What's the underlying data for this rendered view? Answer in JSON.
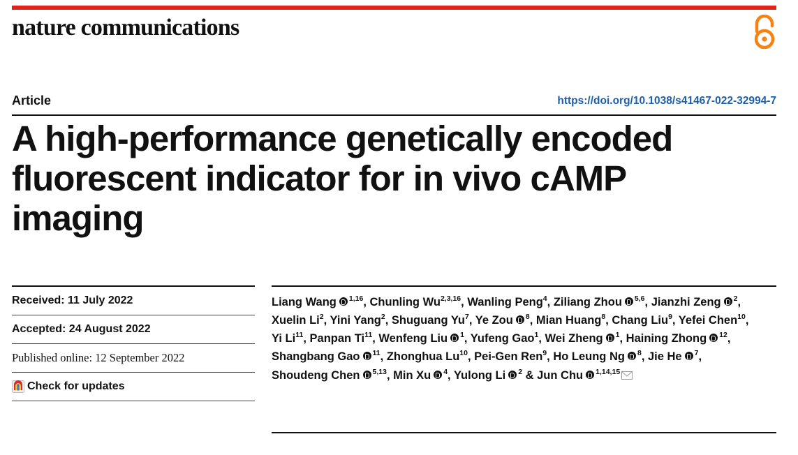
{
  "journal": {
    "name": "nature communications"
  },
  "header": {
    "section": "Article",
    "doi": "https://doi.org/10.1038/s41467-022-32994-7"
  },
  "title": {
    "line1": "A high-performance genetically encoded",
    "line2": "fluorescent indicator for in vivo cAMP",
    "line3": "imaging"
  },
  "meta": {
    "received": "Received: 11 July 2022",
    "accepted": "Accepted: 24 August 2022",
    "published": "Published online: 12 September 2022",
    "check_updates": "Check for updates"
  },
  "authors": [
    {
      "name": "Liang Wang",
      "orcid": true,
      "aff": "1,16",
      "sep": ","
    },
    {
      "name": "Chunling Wu",
      "orcid": false,
      "aff": "2,3,16",
      "sep": ","
    },
    {
      "name": "Wanling Peng",
      "orcid": false,
      "aff": "4",
      "sep": ","
    },
    {
      "name": "Ziliang Zhou",
      "orcid": true,
      "aff": "5,6",
      "sep": ","
    },
    {
      "name": "Jianzhi Zeng",
      "orcid": true,
      "aff": "2",
      "sep": ","
    },
    {
      "name": "Xuelin Li",
      "orcid": false,
      "aff": "2",
      "sep": ","
    },
    {
      "name": "Yini Yang",
      "orcid": false,
      "aff": "2",
      "sep": ","
    },
    {
      "name": "Shuguang Yu",
      "orcid": false,
      "aff": "7",
      "sep": ","
    },
    {
      "name": "Ye Zou",
      "orcid": true,
      "aff": "8",
      "sep": ","
    },
    {
      "name": "Mian Huang",
      "orcid": false,
      "aff": "8",
      "sep": ","
    },
    {
      "name": "Chang Liu",
      "orcid": false,
      "aff": "9",
      "sep": ","
    },
    {
      "name": "Yefei Chen",
      "orcid": false,
      "aff": "10",
      "sep": ","
    },
    {
      "name": "Yi Li",
      "orcid": false,
      "aff": "11",
      "sep": ","
    },
    {
      "name": "Panpan Ti",
      "orcid": false,
      "aff": "11",
      "sep": ","
    },
    {
      "name": "Wenfeng Liu",
      "orcid": true,
      "aff": "1",
      "sep": ","
    },
    {
      "name": "Yufeng Gao",
      "orcid": false,
      "aff": "1",
      "sep": ","
    },
    {
      "name": "Wei Zheng",
      "orcid": true,
      "aff": "1",
      "sep": ","
    },
    {
      "name": "Haining Zhong",
      "orcid": true,
      "aff": "12",
      "sep": ","
    },
    {
      "name": "Shangbang Gao",
      "orcid": true,
      "aff": "11",
      "sep": ","
    },
    {
      "name": "Zhonghua Lu",
      "orcid": false,
      "aff": "10",
      "sep": ","
    },
    {
      "name": "Pei-Gen Ren",
      "orcid": false,
      "aff": "9",
      "sep": ","
    },
    {
      "name": "Ho Leung Ng",
      "orcid": true,
      "aff": "8",
      "sep": ","
    },
    {
      "name": "Jie He",
      "orcid": true,
      "aff": "7",
      "sep": ","
    },
    {
      "name": "Shoudeng Chen",
      "orcid": true,
      "aff": "5,13",
      "sep": ","
    },
    {
      "name": "Min Xu",
      "orcid": true,
      "aff": "4",
      "sep": ","
    },
    {
      "name": "Yulong Li",
      "orcid": true,
      "aff": "2",
      "sep": " &"
    },
    {
      "name": "Jun Chu",
      "orcid": true,
      "aff": "1,14,15",
      "sep": ""
    }
  ]
}
